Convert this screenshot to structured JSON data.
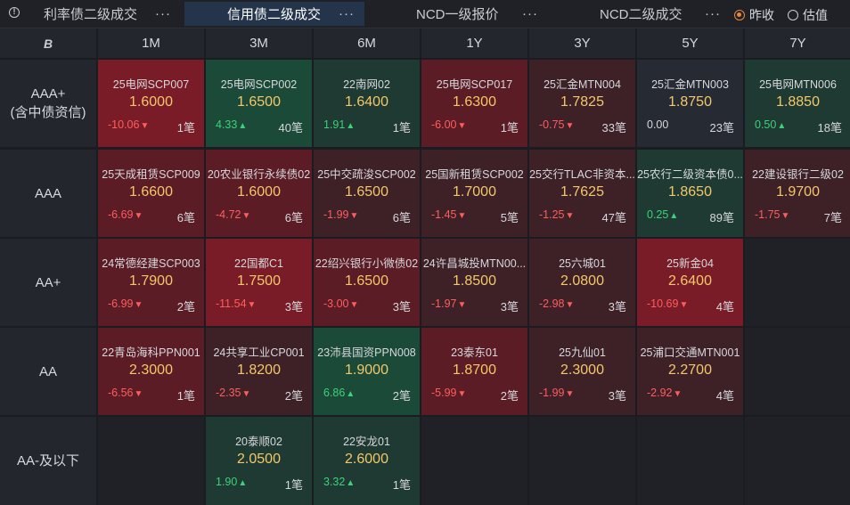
{
  "tabs": [
    {
      "label": "利率债二级成交",
      "active": false
    },
    {
      "label": "信用债二级成交",
      "active": true
    },
    {
      "label": "NCD一级报价",
      "active": false
    },
    {
      "label": "NCD二级成交",
      "active": false
    }
  ],
  "radios": [
    {
      "label": "昨收",
      "checked": true
    },
    {
      "label": "估值",
      "checked": false
    }
  ],
  "corner_label": "B",
  "columns": [
    "1M",
    "3M",
    "6M",
    "1Y",
    "3Y",
    "5Y",
    "7Y"
  ],
  "rows": [
    {
      "label": "AAA+",
      "sublabel": "(含中债资信)"
    },
    {
      "label": "AAA",
      "sublabel": ""
    },
    {
      "label": "AA+",
      "sublabel": ""
    },
    {
      "label": "AA",
      "sublabel": ""
    },
    {
      "label": "AA-及以下",
      "sublabel": ""
    }
  ],
  "colors": {
    "bg_red_strong": "#7a1c27",
    "bg_red_mid": "#5c1c25",
    "bg_red_light": "#3e2027",
    "bg_green_strong": "#1c4a38",
    "bg_green_light": "#1f3a32",
    "bg_neutral": "#262a33",
    "bg_empty": "#1f2127"
  },
  "grid": [
    [
      {
        "name": "25电网SCP007",
        "value": "1.6000",
        "change": "-10.06",
        "dir": "down",
        "count": "1笔",
        "bg": "bg_red_strong"
      },
      {
        "name": "25电网SCP002",
        "value": "1.6500",
        "change": "4.33",
        "dir": "up",
        "count": "40笔",
        "bg": "bg_green_strong"
      },
      {
        "name": "22南网02",
        "value": "1.6400",
        "change": "1.91",
        "dir": "up",
        "count": "1笔",
        "bg": "bg_green_light"
      },
      {
        "name": "25电网SCP017",
        "value": "1.6300",
        "change": "-6.00",
        "dir": "down",
        "count": "1笔",
        "bg": "bg_red_mid"
      },
      {
        "name": "25汇金MTN004",
        "value": "1.7825",
        "change": "-0.75",
        "dir": "down",
        "count": "33笔",
        "bg": "bg_red_light"
      },
      {
        "name": "25汇金MTN003",
        "value": "1.8750",
        "change": "0.00",
        "dir": "flat",
        "count": "23笔",
        "bg": "bg_neutral"
      },
      {
        "name": "25电网MTN006",
        "value": "1.8850",
        "change": "0.50",
        "dir": "up",
        "count": "18笔",
        "bg": "bg_green_light"
      }
    ],
    [
      {
        "name": "25天成租赁SCP009",
        "value": "1.6600",
        "change": "-6.69",
        "dir": "down",
        "count": "6笔",
        "bg": "bg_red_mid"
      },
      {
        "name": "20农业银行永续债02",
        "value": "1.6000",
        "change": "-4.72",
        "dir": "down",
        "count": "6笔",
        "bg": "bg_red_mid"
      },
      {
        "name": "25中交疏浚SCP002",
        "value": "1.6500",
        "change": "-1.99",
        "dir": "down",
        "count": "6笔",
        "bg": "bg_red_light"
      },
      {
        "name": "25国新租赁SCP002",
        "value": "1.7000",
        "change": "-1.45",
        "dir": "down",
        "count": "5笔",
        "bg": "bg_red_light"
      },
      {
        "name": "25交行TLAC非资本...",
        "value": "1.7625",
        "change": "-1.25",
        "dir": "down",
        "count": "47笔",
        "bg": "bg_red_light"
      },
      {
        "name": "25农行二级资本债0...",
        "value": "1.8650",
        "change": "0.25",
        "dir": "up",
        "count": "89笔",
        "bg": "bg_green_light"
      },
      {
        "name": "22建设银行二级02",
        "value": "1.9700",
        "change": "-1.75",
        "dir": "down",
        "count": "7笔",
        "bg": "bg_red_light"
      }
    ],
    [
      {
        "name": "24常德经建SCP003",
        "value": "1.7900",
        "change": "-6.99",
        "dir": "down",
        "count": "2笔",
        "bg": "bg_red_mid"
      },
      {
        "name": "22国都C1",
        "value": "1.7500",
        "change": "-11.54",
        "dir": "down",
        "count": "3笔",
        "bg": "bg_red_strong"
      },
      {
        "name": "22绍兴银行小微债02",
        "value": "1.6500",
        "change": "-3.00",
        "dir": "down",
        "count": "3笔",
        "bg": "bg_red_mid"
      },
      {
        "name": "24许昌城投MTN00...",
        "value": "1.8500",
        "change": "-1.97",
        "dir": "down",
        "count": "3笔",
        "bg": "bg_red_light"
      },
      {
        "name": "25六城01",
        "value": "2.0800",
        "change": "-2.98",
        "dir": "down",
        "count": "3笔",
        "bg": "bg_red_light"
      },
      {
        "name": "25新金04",
        "value": "2.6400",
        "change": "-10.69",
        "dir": "down",
        "count": "4笔",
        "bg": "bg_red_strong"
      },
      null
    ],
    [
      {
        "name": "22青岛海科PPN001",
        "value": "2.3000",
        "change": "-6.56",
        "dir": "down",
        "count": "1笔",
        "bg": "bg_red_mid"
      },
      {
        "name": "24共享工业CP001",
        "value": "1.8200",
        "change": "-2.35",
        "dir": "down",
        "count": "2笔",
        "bg": "bg_red_light"
      },
      {
        "name": "23沛县国资PPN008",
        "value": "1.9000",
        "change": "6.86",
        "dir": "up",
        "count": "2笔",
        "bg": "bg_green_strong"
      },
      {
        "name": "23泰东01",
        "value": "1.8700",
        "change": "-5.99",
        "dir": "down",
        "count": "2笔",
        "bg": "bg_red_mid"
      },
      {
        "name": "25九仙01",
        "value": "2.3000",
        "change": "-1.99",
        "dir": "down",
        "count": "3笔",
        "bg": "bg_red_light"
      },
      {
        "name": "25浦口交通MTN001",
        "value": "2.2700",
        "change": "-2.92",
        "dir": "down",
        "count": "4笔",
        "bg": "bg_red_light"
      },
      null
    ],
    [
      null,
      {
        "name": "20泰顺02",
        "value": "2.0500",
        "change": "1.90",
        "dir": "up",
        "count": "1笔",
        "bg": "bg_green_light"
      },
      {
        "name": "22安龙01",
        "value": "2.6000",
        "change": "3.32",
        "dir": "up",
        "count": "1笔",
        "bg": "bg_green_light"
      },
      null,
      null,
      null,
      null
    ]
  ]
}
